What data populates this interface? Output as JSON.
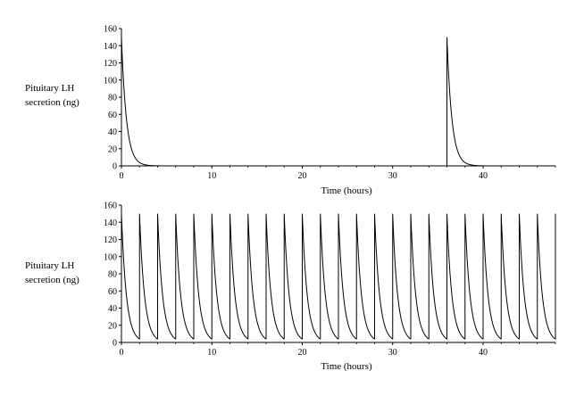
{
  "chart_data": [
    {
      "type": "line",
      "ylabel": [
        "Pituitary LH",
        "secretion (ng)"
      ],
      "xlabel": "Time (hours)",
      "xlim": [
        0,
        48
      ],
      "ylim": [
        0,
        160
      ],
      "xticks": [
        0,
        10,
        20,
        30,
        40
      ],
      "yticks": [
        0,
        20,
        40,
        60,
        80,
        100,
        120,
        140,
        160
      ],
      "grid": false,
      "line_color": "#000000",
      "pulses": {
        "times": [
          0,
          36
        ],
        "peak": 150,
        "decay_constant_hours": 0.55
      }
    },
    {
      "type": "line",
      "ylabel": [
        "Pituitary LH",
        "secretion (ng)"
      ],
      "xlabel": "Time (hours)",
      "xlim": [
        0,
        48
      ],
      "ylim": [
        0,
        160
      ],
      "xticks": [
        0,
        10,
        20,
        30,
        40
      ],
      "yticks": [
        0,
        20,
        40,
        60,
        80,
        100,
        120,
        140,
        160
      ],
      "grid": false,
      "line_color": "#000000",
      "pulses": {
        "times": [
          0,
          2,
          4,
          6,
          8,
          10,
          12,
          14,
          16,
          18,
          20,
          22,
          24,
          26,
          28,
          30,
          32,
          34,
          36,
          38,
          40,
          42,
          44,
          46,
          48
        ],
        "peak": 150,
        "decay_constant_hours": 0.55
      }
    }
  ]
}
